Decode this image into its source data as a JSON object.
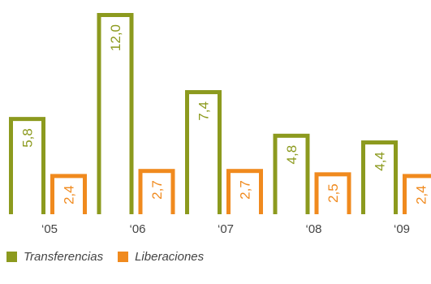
{
  "chart_data": {
    "type": "bar",
    "categories": [
      "‘05",
      "‘06",
      "‘07",
      "‘08",
      "‘09"
    ],
    "series": [
      {
        "name": "Transferencias",
        "color": "#8c9a1e",
        "values": [
          5.8,
          12.0,
          7.4,
          4.8,
          4.4
        ],
        "labels": [
          "5,8",
          "12,0",
          "7,4",
          "4,8",
          "4,4"
        ]
      },
      {
        "name": "Liberaciones",
        "color": "#f08a1e",
        "values": [
          2.4,
          2.7,
          2.7,
          2.5,
          2.4
        ],
        "labels": [
          "2,4",
          "2,7",
          "2,7",
          "2,5",
          "2,4"
        ]
      }
    ],
    "ylim": [
      0,
      12.0
    ],
    "grid": false,
    "legend": "bottom-left",
    "bar_style": "outlined"
  },
  "legend": {
    "transferencias": "Transferencias",
    "liberaciones": "Liberaciones"
  }
}
